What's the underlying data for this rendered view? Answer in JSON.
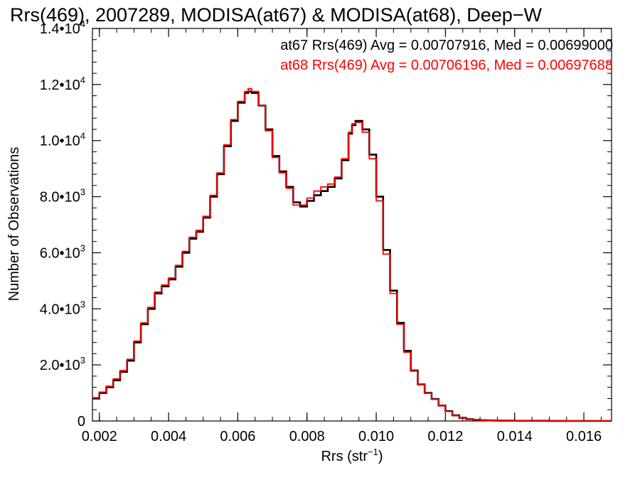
{
  "chart_data": {
    "type": "line",
    "title": "Rrs(469), 2007289, MODISA(at67) & MODISA(at68), Deep−W",
    "xlabel": "Rrs (str",
    "xlabel_sup": "−1",
    "xlabel_close": ")",
    "ylabel": "Number of Observations",
    "xlim": [
      0.0018,
      0.0168
    ],
    "ylim": [
      0,
      14000
    ],
    "x_ticks": [
      {
        "value": 0.002,
        "label": "0.002"
      },
      {
        "value": 0.004,
        "label": "0.004"
      },
      {
        "value": 0.006,
        "label": "0.006"
      },
      {
        "value": 0.008,
        "label": "0.008"
      },
      {
        "value": 0.01,
        "label": "0.010"
      },
      {
        "value": 0.012,
        "label": "0.012"
      },
      {
        "value": 0.014,
        "label": "0.014"
      },
      {
        "value": 0.016,
        "label": "0.016"
      }
    ],
    "y_ticks": [
      {
        "value": 0,
        "mantissa": "0",
        "exp": ""
      },
      {
        "value": 2000,
        "mantissa": "2.0•10",
        "exp": "3"
      },
      {
        "value": 4000,
        "mantissa": "4.0•10",
        "exp": "3"
      },
      {
        "value": 6000,
        "mantissa": "6.0•10",
        "exp": "3"
      },
      {
        "value": 8000,
        "mantissa": "8.0•10",
        "exp": "3"
      },
      {
        "value": 10000,
        "mantissa": "1.0•10",
        "exp": "4"
      },
      {
        "value": 12000,
        "mantissa": "1.2•10",
        "exp": "4"
      },
      {
        "value": 14000,
        "mantissa": "1.4•10",
        "exp": "4"
      }
    ],
    "grid": false,
    "step": true,
    "annotations": [
      {
        "text": "at67 Rrs(469) Avg = 0.00707916, Med = 0.00699000",
        "color": "#000000"
      },
      {
        "text": "at68 Rrs(469) Avg = 0.00706196, Med = 0.00697688",
        "color": "#ff0000"
      }
    ],
    "series": [
      {
        "color": "#000000",
        "x": [
          0.0018,
          0.002,
          0.0022,
          0.0024,
          0.0026,
          0.0028,
          0.003,
          0.0032,
          0.0034,
          0.0036,
          0.0038,
          0.004,
          0.0042,
          0.0044,
          0.0046,
          0.0048,
          0.005,
          0.0052,
          0.0054,
          0.0056,
          0.0058,
          0.006,
          0.0062,
          0.0063,
          0.0064,
          0.0066,
          0.0068,
          0.007,
          0.0072,
          0.0074,
          0.0076,
          0.0078,
          0.008,
          0.0082,
          0.0084,
          0.0086,
          0.0088,
          0.009,
          0.0092,
          0.0093,
          0.0094,
          0.0096,
          0.0098,
          0.01,
          0.0102,
          0.0104,
          0.0106,
          0.0108,
          0.011,
          0.0112,
          0.0114,
          0.0116,
          0.0118,
          0.012,
          0.0122,
          0.0124,
          0.0126,
          0.0128,
          0.013,
          0.0132,
          0.0134,
          0.0136,
          0.014,
          0.0145,
          0.015,
          0.0155,
          0.016,
          0.0165,
          0.0168
        ],
        "y": [
          800,
          1000,
          1200,
          1450,
          1750,
          2150,
          2800,
          3450,
          4000,
          4550,
          4800,
          5050,
          5500,
          6000,
          6500,
          6750,
          7250,
          8000,
          8800,
          9800,
          10700,
          11350,
          11700,
          11750,
          11700,
          11250,
          10400,
          9450,
          8900,
          8350,
          7800,
          7650,
          7850,
          8050,
          8200,
          8350,
          8650,
          9300,
          10250,
          10550,
          10700,
          10400,
          9500,
          8000,
          6100,
          4650,
          3500,
          2500,
          1800,
          1300,
          1000,
          780,
          550,
          350,
          200,
          110,
          65,
          40,
          28,
          20,
          14,
          10,
          6,
          4,
          2,
          1,
          0,
          0,
          0
        ]
      },
      {
        "color": "#ff0000",
        "x": [
          0.0018,
          0.002,
          0.0022,
          0.0024,
          0.0026,
          0.0028,
          0.003,
          0.0032,
          0.0034,
          0.0036,
          0.0038,
          0.004,
          0.0042,
          0.0044,
          0.0046,
          0.0048,
          0.005,
          0.0052,
          0.0054,
          0.0056,
          0.0058,
          0.006,
          0.0062,
          0.0063,
          0.0064,
          0.0066,
          0.0068,
          0.007,
          0.0072,
          0.0074,
          0.0076,
          0.0078,
          0.008,
          0.0082,
          0.0084,
          0.0086,
          0.0088,
          0.009,
          0.0092,
          0.0093,
          0.0094,
          0.0096,
          0.0098,
          0.01,
          0.0102,
          0.0104,
          0.0106,
          0.0108,
          0.011,
          0.0112,
          0.0114,
          0.0116,
          0.0118,
          0.012,
          0.0122,
          0.0124,
          0.0126,
          0.0128,
          0.013,
          0.0132,
          0.0134,
          0.0136,
          0.014,
          0.0145,
          0.015,
          0.0155,
          0.016,
          0.0165,
          0.0168
        ],
        "y": [
          830,
          1030,
          1240,
          1500,
          1800,
          2200,
          2850,
          3500,
          4050,
          4600,
          4850,
          5100,
          5550,
          6050,
          6550,
          6800,
          7300,
          8050,
          8850,
          9850,
          10750,
          11400,
          11750,
          11850,
          11750,
          11250,
          10350,
          9400,
          8850,
          8300,
          7700,
          7700,
          7950,
          8200,
          8350,
          8450,
          8700,
          9350,
          10300,
          10600,
          10650,
          10300,
          9350,
          7850,
          5950,
          4550,
          3450,
          2450,
          1780,
          1290,
          990,
          770,
          540,
          340,
          190,
          105,
          60,
          38,
          26,
          18,
          13,
          9,
          5,
          3,
          2,
          1,
          0,
          0,
          0
        ]
      }
    ]
  }
}
